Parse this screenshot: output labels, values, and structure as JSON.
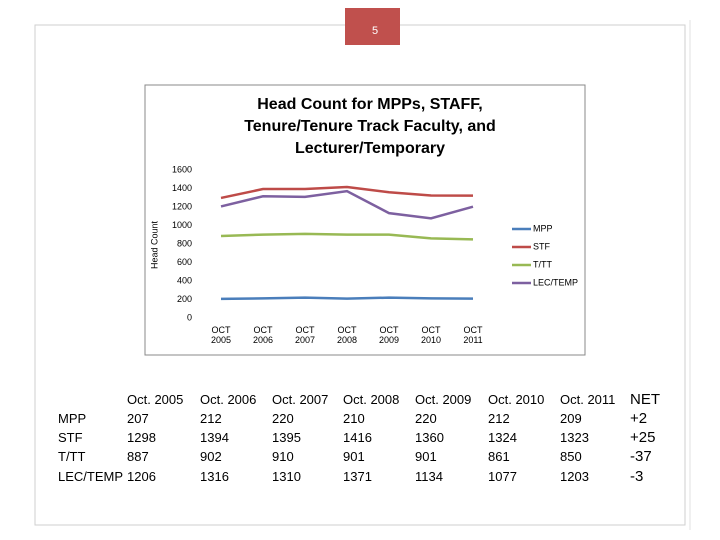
{
  "page_number": "5",
  "chart_data": {
    "type": "line",
    "title": "Head Count for MPPs, STAFF, Tenure/Tenure Track Faculty, and Lecturer/Temporary",
    "y_label": "Head Count",
    "categories": [
      "OCT 2005",
      "OCT 2006",
      "OCT 2007",
      "OCT 2008",
      "OCT 2009",
      "OCT 2010",
      "OCT 2011"
    ],
    "series": [
      {
        "name": "MPP",
        "color": "#4a7ebb",
        "values": [
          207,
          212,
          220,
          210,
          220,
          212,
          209
        ]
      },
      {
        "name": "STF",
        "color": "#be4b48",
        "values": [
          1298,
          1394,
          1395,
          1416,
          1360,
          1324,
          1323
        ]
      },
      {
        "name": "T/TT",
        "color": "#98b954",
        "values": [
          887,
          902,
          910,
          901,
          901,
          861,
          850
        ]
      },
      {
        "name": "LEC/TEMP",
        "color": "#7d60a0",
        "values": [
          1206,
          1316,
          1310,
          1371,
          1134,
          1077,
          1203
        ]
      }
    ],
    "ylim": [
      0,
      1600
    ],
    "yticks": [
      0,
      200,
      400,
      600,
      800,
      1000,
      1200,
      1400,
      1600
    ],
    "grid": false,
    "legend": "right"
  },
  "table": {
    "columns": [
      "Oct. 2005",
      "Oct. 2006",
      "Oct. 2007",
      "Oct. 2008",
      "Oct. 2009",
      "Oct. 2010",
      "Oct. 2011",
      "NET"
    ],
    "rows": [
      {
        "label": "MPP",
        "cells": [
          "207",
          "212",
          "220",
          "210",
          "220",
          "212",
          "209",
          "+2"
        ]
      },
      {
        "label": "STF",
        "cells": [
          "1298",
          "1394",
          "1395",
          "1416",
          "1360",
          "1324",
          "1323",
          "+25"
        ]
      },
      {
        "label": "T/TT",
        "cells": [
          "887",
          "902",
          "910",
          "901",
          "901",
          "861",
          "850",
          "-37"
        ]
      },
      {
        "label": "LEC/TEMP",
        "cells": [
          "1206",
          "1316",
          "1310",
          "1371",
          "1134",
          "1077",
          "1203",
          "-3"
        ]
      }
    ]
  }
}
